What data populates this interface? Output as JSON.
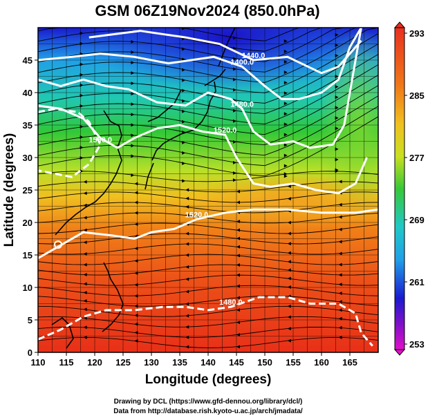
{
  "title": "GSM 06Z19Nov2024 (850.0hPa)",
  "x_axis_title": "Longitude (degrees)",
  "y_axis_title": "Latitude  (degrees)",
  "x_ticks": [
    "110",
    "115",
    "120",
    "125",
    "130",
    "135",
    "140",
    "145",
    "150",
    "155",
    "160",
    "165"
  ],
  "y_ticks": [
    "0",
    "5",
    "10",
    "15",
    "20",
    "25",
    "30",
    "35",
    "40",
    "45"
  ],
  "colorbar_labels": [
    "293",
    "285",
    "277",
    "269",
    "261",
    "253"
  ],
  "contour_labels": [
    "1440.0",
    "1400.0",
    "1480.0",
    "1520.0",
    "1560.0",
    "1520.0",
    "1480.0"
  ],
  "credit_line_1": "Drawing by DCL (https://www.gfd-dennou.org/library/dcl/)",
  "credit_line_2": "Data from http://database.rish.kyoto-u.ac.jp/arch/jmadata/",
  "chart_data": {
    "type": "heatmap",
    "title": "GSM 06Z19Nov2024 (850.0hPa)",
    "xlabel": "Longitude (degrees)",
    "ylabel": "Latitude  (degrees)",
    "xlim": [
      110,
      170
    ],
    "ylim": [
      0,
      50
    ],
    "colorbar": {
      "min": 253,
      "max": 293,
      "labels": [
        293,
        285,
        277,
        269,
        261,
        253
      ]
    },
    "colors": {
      "magenta": "#d010c8",
      "blue": "#1a1ad0",
      "cyan": "#20b0e8",
      "green": "#30c838",
      "yellow": "#e0e028",
      "orange": "#f07818",
      "red": "#e83018"
    },
    "height_contours": [
      {
        "label": "1400.0",
        "points": [
          [
            119,
            48.5
          ],
          [
            128,
            49.5
          ],
          [
            136,
            48.5
          ],
          [
            142,
            47.5
          ],
          [
            148,
            45
          ],
          [
            154,
            45.5
          ],
          [
            160,
            43
          ],
          [
            163,
            44
          ],
          [
            167,
            48
          ]
        ]
      },
      {
        "label": "1440.0",
        "points": [
          [
            110,
            45
          ],
          [
            116,
            45.5
          ],
          [
            121,
            46
          ],
          [
            127,
            45.5
          ],
          [
            133,
            44.5
          ],
          [
            137,
            45
          ],
          [
            141,
            45.5
          ],
          [
            146,
            44
          ],
          [
            150,
            41
          ],
          [
            153,
            39
          ],
          [
            156,
            39
          ],
          [
            160,
            40
          ],
          [
            163,
            42
          ],
          [
            165,
            47
          ],
          [
            167,
            50
          ]
        ]
      },
      {
        "label": "1480.0",
        "points": [
          [
            110,
            42
          ],
          [
            114,
            41
          ],
          [
            118,
            42
          ],
          [
            122,
            41
          ],
          [
            126,
            40.5
          ],
          [
            131,
            38.5
          ],
          [
            136,
            38
          ],
          [
            140,
            40
          ],
          [
            144,
            39
          ],
          [
            146,
            37.5
          ],
          [
            148,
            34
          ],
          [
            151,
            32
          ],
          [
            155,
            32.5
          ],
          [
            158,
            31.5
          ],
          [
            162,
            32
          ],
          [
            164,
            35
          ],
          [
            165,
            40
          ],
          [
            167,
            50
          ]
        ]
      },
      {
        "label": "1520.0",
        "points": [
          [
            110,
            38
          ],
          [
            114,
            37.5
          ],
          [
            118,
            36
          ],
          [
            121,
            33
          ],
          [
            124,
            31.5
          ],
          [
            127,
            33
          ],
          [
            131,
            34.5
          ],
          [
            135,
            35
          ],
          [
            139,
            34
          ],
          [
            143,
            33.5
          ],
          [
            145,
            30
          ],
          [
            148,
            26
          ],
          [
            151,
            25.5
          ],
          [
            155,
            26
          ],
          [
            159,
            25
          ],
          [
            163,
            24.5
          ],
          [
            166,
            26
          ],
          [
            168,
            30
          ]
        ]
      },
      {
        "label": "1560.0",
        "points": [
          [
            110,
            37
          ],
          [
            113,
            37.5
          ],
          [
            117,
            37
          ],
          [
            119,
            35.5
          ],
          [
            121,
            32
          ],
          [
            119,
            29
          ],
          [
            116,
            27
          ],
          [
            113,
            27.5
          ],
          [
            110,
            28
          ]
        ]
      },
      {
        "label": "1520.0",
        "points": [
          [
            110,
            14.5
          ],
          [
            114,
            16.5
          ],
          [
            118,
            18.5
          ],
          [
            123,
            18
          ],
          [
            127,
            17.5
          ],
          [
            130,
            18.5
          ],
          [
            134,
            19
          ],
          [
            138,
            20.5
          ],
          [
            143,
            21.5
          ],
          [
            148,
            22
          ],
          [
            154,
            22
          ],
          [
            160,
            21.5
          ],
          [
            166,
            21.5
          ],
          [
            170,
            22
          ]
        ]
      },
      {
        "label": "1480.0",
        "points": [
          [
            110,
            2
          ],
          [
            114,
            3.5
          ],
          [
            118,
            5.5
          ],
          [
            122,
            6.5
          ],
          [
            127,
            6.5
          ],
          [
            132,
            7
          ],
          [
            136,
            7
          ],
          [
            140,
            6.5
          ],
          [
            144,
            7
          ],
          [
            149,
            8.5
          ],
          [
            154,
            8.5
          ],
          [
            158,
            7.5
          ],
          [
            163,
            7.5
          ],
          [
            166,
            6
          ],
          [
            167,
            3
          ],
          [
            169,
            1
          ]
        ]
      }
    ]
  }
}
